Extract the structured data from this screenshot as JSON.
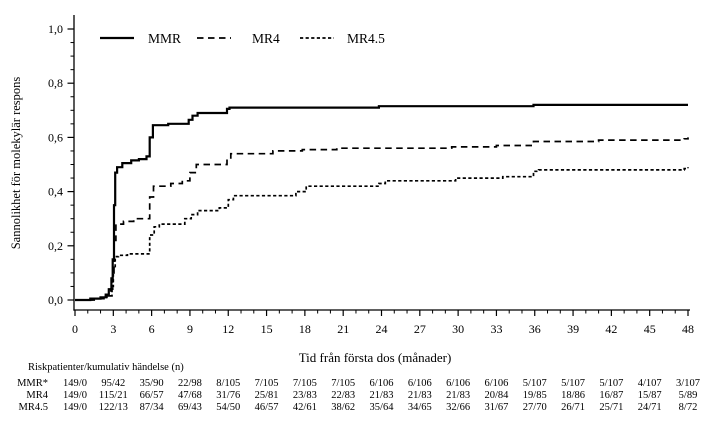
{
  "chart_data": {
    "type": "line",
    "step": true,
    "title": "",
    "xlabel": "Tid från första dos (månader)",
    "ylabel": "Sannolikhet för molekylär respons",
    "xlim": [
      0,
      48
    ],
    "ylim": [
      0,
      1
    ],
    "grid": false,
    "legend_position": "top-inside-horizontal",
    "line_color": "#000000",
    "background_color": "#ffffff",
    "x_ticks": {
      "values": [
        0,
        3,
        6,
        9,
        12,
        15,
        18,
        21,
        24,
        27,
        30,
        33,
        36,
        39,
        42,
        45,
        48
      ],
      "labels": [
        "0",
        "3",
        "6",
        "9",
        "12",
        "15",
        "18",
        "21",
        "24",
        "27",
        "30",
        "33",
        "36",
        "39",
        "42",
        "45",
        "48"
      ],
      "minor_step": 1
    },
    "y_ticks": {
      "values": [
        0,
        0.2,
        0.4,
        0.6,
        0.8,
        1.0
      ],
      "labels": [
        "0,0",
        "0,2",
        "0,4",
        "0,6",
        "0,8",
        "1,0"
      ],
      "minor_step": 0.05
    },
    "series": [
      {
        "name": "MMR",
        "style": "solid",
        "points": [
          [
            0,
            0
          ],
          [
            1.2,
            0.005
          ],
          [
            2.0,
            0.01
          ],
          [
            2.4,
            0.02
          ],
          [
            2.65,
            0.04
          ],
          [
            2.85,
            0.08
          ],
          [
            2.95,
            0.15
          ],
          [
            3.05,
            0.35
          ],
          [
            3.15,
            0.47
          ],
          [
            3.3,
            0.49
          ],
          [
            3.7,
            0.505
          ],
          [
            4.4,
            0.515
          ],
          [
            5.0,
            0.52
          ],
          [
            5.6,
            0.53
          ],
          [
            5.85,
            0.6
          ],
          [
            6.1,
            0.645
          ],
          [
            7.3,
            0.65
          ],
          [
            8.9,
            0.665
          ],
          [
            9.2,
            0.68
          ],
          [
            9.6,
            0.69
          ],
          [
            11.9,
            0.705
          ],
          [
            12.1,
            0.71
          ],
          [
            23.8,
            0.715
          ],
          [
            35.9,
            0.72
          ],
          [
            48,
            0.72
          ]
        ]
      },
      {
        "name": "MR4",
        "style": "dashed",
        "points": [
          [
            0,
            0
          ],
          [
            1.5,
            0.005
          ],
          [
            2.4,
            0.015
          ],
          [
            2.8,
            0.04
          ],
          [
            2.95,
            0.1
          ],
          [
            3.05,
            0.22
          ],
          [
            3.2,
            0.28
          ],
          [
            3.8,
            0.29
          ],
          [
            4.6,
            0.3
          ],
          [
            5.85,
            0.38
          ],
          [
            6.15,
            0.42
          ],
          [
            7.5,
            0.43
          ],
          [
            8.4,
            0.44
          ],
          [
            9.0,
            0.47
          ],
          [
            9.5,
            0.5
          ],
          [
            11.9,
            0.52
          ],
          [
            12.2,
            0.54
          ],
          [
            15.5,
            0.55
          ],
          [
            17.8,
            0.555
          ],
          [
            20.5,
            0.56
          ],
          [
            29.5,
            0.565
          ],
          [
            33,
            0.57
          ],
          [
            35.9,
            0.585
          ],
          [
            41,
            0.59
          ],
          [
            47.7,
            0.595
          ],
          [
            48,
            0.6
          ]
        ]
      },
      {
        "name": "MR4.5",
        "style": "fine-dashed",
        "points": [
          [
            0,
            0
          ],
          [
            1.5,
            0.005
          ],
          [
            2.5,
            0.015
          ],
          [
            2.9,
            0.05
          ],
          [
            3.0,
            0.12
          ],
          [
            3.15,
            0.16
          ],
          [
            3.4,
            0.165
          ],
          [
            4.1,
            0.17
          ],
          [
            5.85,
            0.24
          ],
          [
            6.2,
            0.27
          ],
          [
            6.6,
            0.28
          ],
          [
            8.6,
            0.3
          ],
          [
            9.1,
            0.315
          ],
          [
            9.6,
            0.33
          ],
          [
            11.3,
            0.34
          ],
          [
            12.0,
            0.37
          ],
          [
            12.4,
            0.385
          ],
          [
            17.3,
            0.4
          ],
          [
            18.1,
            0.42
          ],
          [
            23.8,
            0.43
          ],
          [
            24.3,
            0.44
          ],
          [
            29.8,
            0.45
          ],
          [
            33.5,
            0.455
          ],
          [
            35.9,
            0.475
          ],
          [
            36.3,
            0.48
          ],
          [
            47.7,
            0.485
          ],
          [
            48,
            0.49
          ]
        ]
      }
    ],
    "risk_table": {
      "header": "Riskpatienter/kumulativ händelse (n)",
      "time_points": [
        0,
        3,
        6,
        9,
        12,
        15,
        18,
        21,
        24,
        27,
        30,
        33,
        36,
        39,
        42,
        45,
        48
      ],
      "rows": [
        {
          "label": "MMR*",
          "values": [
            "149/0",
            "95/42",
            "35/90",
            "22/98",
            "8/105",
            "7/105",
            "7/105",
            "7/105",
            "6/106",
            "6/106",
            "6/106",
            "6/106",
            "5/107",
            "5/107",
            "5/107",
            "4/107",
            "3/107"
          ]
        },
        {
          "label": "MR4",
          "values": [
            "149/0",
            "115/21",
            "66/57",
            "47/68",
            "31/76",
            "25/81",
            "23/83",
            "22/83",
            "21/83",
            "21/83",
            "21/83",
            "20/84",
            "19/85",
            "18/86",
            "16/87",
            "15/87",
            "5/89"
          ]
        },
        {
          "label": "MR4.5",
          "values": [
            "149/0",
            "122/13",
            "87/34",
            "69/43",
            "54/50",
            "46/57",
            "42/61",
            "38/62",
            "35/64",
            "34/65",
            "32/66",
            "31/67",
            "27/70",
            "26/71",
            "25/71",
            "24/71",
            "8/72"
          ]
        }
      ]
    }
  }
}
